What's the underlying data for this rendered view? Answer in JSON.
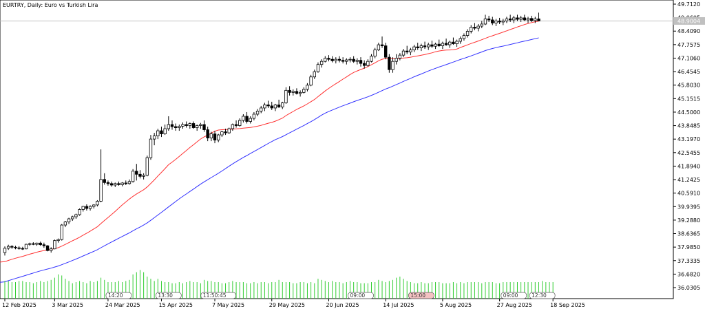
{
  "chart_data": {
    "type": "candlestick",
    "symbol_title": "EURTRY, Daily:  Euro vs Turkish Lira",
    "current_price": "48.9004",
    "y_ticks": [
      "49.7120",
      "49.0605",
      "48.4090",
      "47.7575",
      "47.1060",
      "46.4545",
      "45.8030",
      "45.1515",
      "44.5000",
      "43.8485",
      "43.1970",
      "42.5455",
      "41.8940",
      "41.2425",
      "40.5910",
      "39.9395",
      "39.2880",
      "38.6365",
      "37.9850",
      "37.3335",
      "36.6820",
      "36.0305"
    ],
    "y_tick_values": [
      49.712,
      49.0605,
      48.409,
      47.7575,
      47.106,
      46.4545,
      45.803,
      45.1515,
      44.5,
      43.8485,
      43.197,
      42.5455,
      41.894,
      41.2425,
      40.591,
      39.9395,
      39.288,
      38.6365,
      37.985,
      37.3335,
      36.682,
      36.0305
    ],
    "x_ticks": [
      {
        "label": "12 Feb 2025",
        "bar": 0
      },
      {
        "label": "3 Mar 2025",
        "bar": 14
      },
      {
        "label": "24 Mar 2025",
        "bar": 29
      },
      {
        "label": "15 Apr 2025",
        "bar": 44
      },
      {
        "label": "7 May 2025",
        "bar": 59
      },
      {
        "label": "29 May 2025",
        "bar": 75
      },
      {
        "label": "20 Jun 2025",
        "bar": 91
      },
      {
        "label": "14 Jul 2025",
        "bar": 107
      },
      {
        "label": "5 Aug 2025",
        "bar": 123
      },
      {
        "label": "27 Aug 2025",
        "bar": 139
      },
      {
        "label": "18 Sep 2025",
        "bar": 154
      }
    ],
    "events": [
      {
        "label": "14:20",
        "bar": 32,
        "color": "#ffffff"
      },
      {
        "label": "13:30",
        "bar": 46,
        "color": "#ffffff"
      },
      {
        "label": "11:50:45",
        "bar": 60,
        "color": "#ffffff"
      },
      {
        "label": "09:00",
        "bar": 100,
        "color": "#ffffff"
      },
      {
        "label": "15:00",
        "bar": 117,
        "color": "#f4c2c2"
      },
      {
        "label": "09:00",
        "bar": 143,
        "color": "#ffffff"
      },
      {
        "label": "12:30",
        "bar": 151,
        "color": "#ffffff"
      }
    ],
    "ma_fast": {
      "name": "",
      "color": "#ff3030"
    },
    "ma_slow": {
      "name": "",
      "color": "#3030ff"
    },
    "candles": [
      {
        "o": 37.72,
        "h": 38.02,
        "l": 37.58,
        "c": 37.93
      },
      {
        "o": 37.93,
        "h": 38.1,
        "l": 37.85,
        "c": 38.02
      },
      {
        "o": 38.02,
        "h": 38.08,
        "l": 37.9,
        "c": 37.98
      },
      {
        "o": 37.98,
        "h": 38.05,
        "l": 37.88,
        "c": 37.95
      },
      {
        "o": 37.95,
        "h": 38.03,
        "l": 37.86,
        "c": 37.92
      },
      {
        "o": 37.92,
        "h": 38.0,
        "l": 37.85,
        "c": 37.9
      },
      {
        "o": 37.9,
        "h": 38.15,
        "l": 37.88,
        "c": 38.12
      },
      {
        "o": 38.12,
        "h": 38.2,
        "l": 38.05,
        "c": 38.15
      },
      {
        "o": 38.15,
        "h": 38.22,
        "l": 38.08,
        "c": 38.12
      },
      {
        "o": 38.12,
        "h": 38.2,
        "l": 38.05,
        "c": 38.18
      },
      {
        "o": 38.18,
        "h": 38.25,
        "l": 38.05,
        "c": 38.1
      },
      {
        "o": 38.1,
        "h": 38.2,
        "l": 37.95,
        "c": 38.05
      },
      {
        "o": 38.05,
        "h": 38.08,
        "l": 37.78,
        "c": 37.82
      },
      {
        "o": 37.82,
        "h": 37.98,
        "l": 37.72,
        "c": 37.9
      },
      {
        "o": 37.9,
        "h": 38.35,
        "l": 37.88,
        "c": 38.3
      },
      {
        "o": 38.3,
        "h": 38.4,
        "l": 38.2,
        "c": 38.35
      },
      {
        "o": 38.35,
        "h": 39.1,
        "l": 38.3,
        "c": 39.05
      },
      {
        "o": 39.05,
        "h": 39.25,
        "l": 38.95,
        "c": 39.2
      },
      {
        "o": 39.2,
        "h": 39.4,
        "l": 39.1,
        "c": 39.35
      },
      {
        "o": 39.35,
        "h": 39.5,
        "l": 39.25,
        "c": 39.45
      },
      {
        "o": 39.45,
        "h": 39.6,
        "l": 39.35,
        "c": 39.55
      },
      {
        "o": 39.55,
        "h": 39.85,
        "l": 39.5,
        "c": 39.8
      },
      {
        "o": 39.8,
        "h": 39.98,
        "l": 39.7,
        "c": 39.95
      },
      {
        "o": 39.95,
        "h": 40.05,
        "l": 39.75,
        "c": 39.85
      },
      {
        "o": 39.85,
        "h": 40.0,
        "l": 39.75,
        "c": 39.95
      },
      {
        "o": 39.95,
        "h": 40.05,
        "l": 39.85,
        "c": 40.02
      },
      {
        "o": 40.02,
        "h": 40.25,
        "l": 39.95,
        "c": 40.2
      },
      {
        "o": 40.2,
        "h": 42.7,
        "l": 40.15,
        "c": 41.25
      },
      {
        "o": 41.25,
        "h": 41.55,
        "l": 41.0,
        "c": 41.1
      },
      {
        "o": 41.1,
        "h": 41.2,
        "l": 40.95,
        "c": 41.05
      },
      {
        "o": 41.05,
        "h": 41.15,
        "l": 40.9,
        "c": 40.98
      },
      {
        "o": 40.98,
        "h": 41.1,
        "l": 40.88,
        "c": 41.05
      },
      {
        "o": 41.05,
        "h": 41.15,
        "l": 40.95,
        "c": 41.0
      },
      {
        "o": 41.0,
        "h": 41.12,
        "l": 40.92,
        "c": 41.08
      },
      {
        "o": 41.08,
        "h": 41.2,
        "l": 40.98,
        "c": 41.05
      },
      {
        "o": 41.05,
        "h": 41.25,
        "l": 41.0,
        "c": 41.15
      },
      {
        "o": 41.15,
        "h": 41.75,
        "l": 41.1,
        "c": 41.65
      },
      {
        "o": 41.65,
        "h": 42.0,
        "l": 41.2,
        "c": 41.5
      },
      {
        "o": 41.5,
        "h": 41.7,
        "l": 41.3,
        "c": 41.4
      },
      {
        "o": 41.4,
        "h": 41.55,
        "l": 41.25,
        "c": 41.45
      },
      {
        "o": 41.45,
        "h": 42.4,
        "l": 41.4,
        "c": 42.3
      },
      {
        "o": 42.3,
        "h": 43.4,
        "l": 42.2,
        "c": 43.2
      },
      {
        "o": 43.2,
        "h": 43.5,
        "l": 42.9,
        "c": 43.35
      },
      {
        "o": 43.35,
        "h": 43.7,
        "l": 43.2,
        "c": 43.6
      },
      {
        "o": 43.6,
        "h": 43.8,
        "l": 43.3,
        "c": 43.45
      },
      {
        "o": 43.45,
        "h": 43.9,
        "l": 43.4,
        "c": 43.7
      },
      {
        "o": 43.7,
        "h": 44.3,
        "l": 43.6,
        "c": 43.9
      },
      {
        "o": 43.9,
        "h": 44.1,
        "l": 43.65,
        "c": 43.8
      },
      {
        "o": 43.8,
        "h": 43.95,
        "l": 43.6,
        "c": 43.75
      },
      {
        "o": 43.75,
        "h": 43.9,
        "l": 43.6,
        "c": 43.82
      },
      {
        "o": 43.82,
        "h": 44.0,
        "l": 43.7,
        "c": 43.9
      },
      {
        "o": 43.9,
        "h": 44.05,
        "l": 43.75,
        "c": 43.85
      },
      {
        "o": 43.85,
        "h": 44.0,
        "l": 43.7,
        "c": 43.95
      },
      {
        "o": 43.95,
        "h": 44.05,
        "l": 43.7,
        "c": 43.75
      },
      {
        "o": 43.75,
        "h": 43.9,
        "l": 43.6,
        "c": 43.85
      },
      {
        "o": 43.85,
        "h": 43.98,
        "l": 43.7,
        "c": 43.9
      },
      {
        "o": 43.9,
        "h": 44.1,
        "l": 43.55,
        "c": 43.65
      },
      {
        "o": 43.65,
        "h": 43.8,
        "l": 43.1,
        "c": 43.25
      },
      {
        "o": 43.25,
        "h": 43.55,
        "l": 43.1,
        "c": 43.45
      },
      {
        "o": 43.45,
        "h": 43.6,
        "l": 43.0,
        "c": 43.15
      },
      {
        "o": 43.15,
        "h": 43.45,
        "l": 43.05,
        "c": 43.4
      },
      {
        "o": 43.4,
        "h": 43.6,
        "l": 43.3,
        "c": 43.55
      },
      {
        "o": 43.55,
        "h": 43.7,
        "l": 43.4,
        "c": 43.5
      },
      {
        "o": 43.5,
        "h": 43.75,
        "l": 43.45,
        "c": 43.7
      },
      {
        "o": 43.7,
        "h": 43.95,
        "l": 43.6,
        "c": 43.9
      },
      {
        "o": 43.9,
        "h": 44.1,
        "l": 43.75,
        "c": 43.85
      },
      {
        "o": 43.85,
        "h": 44.2,
        "l": 43.8,
        "c": 44.1
      },
      {
        "o": 44.1,
        "h": 44.4,
        "l": 44.0,
        "c": 44.3
      },
      {
        "o": 44.3,
        "h": 44.5,
        "l": 43.95,
        "c": 44.05
      },
      {
        "o": 44.05,
        "h": 44.3,
        "l": 43.95,
        "c": 44.2
      },
      {
        "o": 44.2,
        "h": 44.5,
        "l": 44.1,
        "c": 44.4
      },
      {
        "o": 44.4,
        "h": 44.65,
        "l": 44.3,
        "c": 44.55
      },
      {
        "o": 44.55,
        "h": 44.8,
        "l": 44.45,
        "c": 44.7
      },
      {
        "o": 44.7,
        "h": 44.95,
        "l": 44.55,
        "c": 44.85
      },
      {
        "o": 44.85,
        "h": 45.05,
        "l": 44.7,
        "c": 44.8
      },
      {
        "o": 44.8,
        "h": 45.0,
        "l": 44.6,
        "c": 44.7
      },
      {
        "o": 44.7,
        "h": 44.9,
        "l": 44.55,
        "c": 44.85
      },
      {
        "o": 44.85,
        "h": 45.1,
        "l": 44.7,
        "c": 44.75
      },
      {
        "o": 44.75,
        "h": 45.0,
        "l": 44.65,
        "c": 44.95
      },
      {
        "o": 44.95,
        "h": 45.7,
        "l": 44.9,
        "c": 45.55
      },
      {
        "o": 45.55,
        "h": 45.75,
        "l": 45.3,
        "c": 45.45
      },
      {
        "o": 45.45,
        "h": 45.6,
        "l": 45.3,
        "c": 45.5
      },
      {
        "o": 45.5,
        "h": 45.65,
        "l": 45.35,
        "c": 45.4
      },
      {
        "o": 45.4,
        "h": 45.55,
        "l": 45.25,
        "c": 45.45
      },
      {
        "o": 45.45,
        "h": 45.7,
        "l": 45.4,
        "c": 45.6
      },
      {
        "o": 45.6,
        "h": 45.9,
        "l": 45.5,
        "c": 45.8
      },
      {
        "o": 45.8,
        "h": 46.3,
        "l": 45.75,
        "c": 46.2
      },
      {
        "o": 46.2,
        "h": 46.55,
        "l": 46.1,
        "c": 46.45
      },
      {
        "o": 46.45,
        "h": 46.9,
        "l": 46.4,
        "c": 46.8
      },
      {
        "o": 46.8,
        "h": 47.05,
        "l": 46.65,
        "c": 46.95
      },
      {
        "o": 46.95,
        "h": 47.2,
        "l": 46.9,
        "c": 47.1
      },
      {
        "o": 47.1,
        "h": 47.25,
        "l": 46.95,
        "c": 47.05
      },
      {
        "o": 47.05,
        "h": 47.2,
        "l": 46.9,
        "c": 46.98
      },
      {
        "o": 46.98,
        "h": 47.15,
        "l": 46.85,
        "c": 47.05
      },
      {
        "o": 47.05,
        "h": 47.2,
        "l": 46.9,
        "c": 47.0
      },
      {
        "o": 47.0,
        "h": 47.15,
        "l": 46.85,
        "c": 46.95
      },
      {
        "o": 46.95,
        "h": 47.1,
        "l": 46.8,
        "c": 47.02
      },
      {
        "o": 47.02,
        "h": 47.15,
        "l": 46.9,
        "c": 47.05
      },
      {
        "o": 47.05,
        "h": 47.2,
        "l": 46.88,
        "c": 46.95
      },
      {
        "o": 46.95,
        "h": 47.1,
        "l": 46.8,
        "c": 47.0
      },
      {
        "o": 47.0,
        "h": 47.15,
        "l": 46.7,
        "c": 46.85
      },
      {
        "o": 46.85,
        "h": 47.0,
        "l": 46.6,
        "c": 46.75
      },
      {
        "o": 46.75,
        "h": 47.05,
        "l": 46.7,
        "c": 46.95
      },
      {
        "o": 46.95,
        "h": 47.3,
        "l": 46.9,
        "c": 47.2
      },
      {
        "o": 47.2,
        "h": 47.6,
        "l": 47.1,
        "c": 47.5
      },
      {
        "o": 47.5,
        "h": 47.85,
        "l": 47.45,
        "c": 47.75
      },
      {
        "o": 47.75,
        "h": 48.15,
        "l": 47.6,
        "c": 47.7
      },
      {
        "o": 47.7,
        "h": 47.85,
        "l": 47.05,
        "c": 47.15
      },
      {
        "o": 47.15,
        "h": 47.3,
        "l": 46.4,
        "c": 46.55
      },
      {
        "o": 46.55,
        "h": 47.15,
        "l": 46.4,
        "c": 46.95
      },
      {
        "o": 46.95,
        "h": 47.3,
        "l": 46.8,
        "c": 47.1
      },
      {
        "o": 47.1,
        "h": 47.35,
        "l": 47.0,
        "c": 47.25
      },
      {
        "o": 47.25,
        "h": 47.55,
        "l": 47.15,
        "c": 47.45
      },
      {
        "o": 47.45,
        "h": 47.7,
        "l": 47.3,
        "c": 47.4
      },
      {
        "o": 47.4,
        "h": 47.6,
        "l": 47.25,
        "c": 47.5
      },
      {
        "o": 47.5,
        "h": 47.75,
        "l": 47.4,
        "c": 47.65
      },
      {
        "o": 47.65,
        "h": 47.85,
        "l": 47.5,
        "c": 47.6
      },
      {
        "o": 47.6,
        "h": 47.8,
        "l": 47.45,
        "c": 47.7
      },
      {
        "o": 47.7,
        "h": 47.9,
        "l": 47.55,
        "c": 47.65
      },
      {
        "o": 47.65,
        "h": 47.85,
        "l": 47.5,
        "c": 47.75
      },
      {
        "o": 47.75,
        "h": 47.95,
        "l": 47.6,
        "c": 47.68
      },
      {
        "o": 47.68,
        "h": 47.85,
        "l": 47.55,
        "c": 47.78
      },
      {
        "o": 47.78,
        "h": 48.0,
        "l": 47.65,
        "c": 47.7
      },
      {
        "o": 47.7,
        "h": 47.9,
        "l": 47.55,
        "c": 47.82
      },
      {
        "o": 47.82,
        "h": 48.05,
        "l": 47.7,
        "c": 47.75
      },
      {
        "o": 47.75,
        "h": 47.95,
        "l": 47.6,
        "c": 47.88
      },
      {
        "o": 47.88,
        "h": 48.1,
        "l": 47.75,
        "c": 47.8
      },
      {
        "o": 47.8,
        "h": 48.0,
        "l": 47.65,
        "c": 47.92
      },
      {
        "o": 47.92,
        "h": 48.15,
        "l": 47.8,
        "c": 48.05
      },
      {
        "o": 48.05,
        "h": 48.3,
        "l": 47.95,
        "c": 48.2
      },
      {
        "o": 48.2,
        "h": 48.5,
        "l": 48.1,
        "c": 48.4
      },
      {
        "o": 48.4,
        "h": 48.7,
        "l": 48.3,
        "c": 48.6
      },
      {
        "o": 48.6,
        "h": 48.8,
        "l": 48.45,
        "c": 48.55
      },
      {
        "o": 48.55,
        "h": 48.75,
        "l": 48.4,
        "c": 48.65
      },
      {
        "o": 48.65,
        "h": 48.9,
        "l": 48.55,
        "c": 48.75
      },
      {
        "o": 48.75,
        "h": 49.2,
        "l": 48.7,
        "c": 49.0
      },
      {
        "o": 49.0,
        "h": 49.15,
        "l": 48.85,
        "c": 48.95
      },
      {
        "o": 48.95,
        "h": 49.1,
        "l": 48.7,
        "c": 48.8
      },
      {
        "o": 48.8,
        "h": 49.0,
        "l": 48.65,
        "c": 48.9
      },
      {
        "o": 48.9,
        "h": 49.05,
        "l": 48.75,
        "c": 48.85
      },
      {
        "o": 48.85,
        "h": 49.0,
        "l": 48.7,
        "c": 48.9
      },
      {
        "o": 48.9,
        "h": 49.1,
        "l": 48.8,
        "c": 49.0
      },
      {
        "o": 49.0,
        "h": 49.2,
        "l": 48.85,
        "c": 48.95
      },
      {
        "o": 48.95,
        "h": 49.15,
        "l": 48.8,
        "c": 49.05
      },
      {
        "o": 49.05,
        "h": 49.2,
        "l": 48.9,
        "c": 48.98
      },
      {
        "o": 48.98,
        "h": 49.15,
        "l": 48.85,
        "c": 49.05
      },
      {
        "o": 49.05,
        "h": 49.2,
        "l": 48.9,
        "c": 48.95
      },
      {
        "o": 48.95,
        "h": 49.1,
        "l": 48.8,
        "c": 49.02
      },
      {
        "o": 49.02,
        "h": 49.15,
        "l": 48.85,
        "c": 48.92
      },
      {
        "o": 48.92,
        "h": 49.1,
        "l": 48.8,
        "c": 49.0
      },
      {
        "o": 49.0,
        "h": 49.3,
        "l": 48.9,
        "c": 48.9
      }
    ],
    "volumes": [
      16,
      16,
      15,
      15,
      16,
      16,
      15,
      15,
      14,
      15,
      16,
      15,
      16,
      17,
      19,
      22,
      21,
      18,
      16,
      14,
      15,
      16,
      15,
      14,
      16,
      15,
      16,
      19,
      17,
      15,
      15,
      15,
      16,
      15,
      16,
      17,
      22,
      24,
      26,
      24,
      20,
      18,
      16,
      18,
      16,
      15,
      15,
      14,
      14,
      15,
      14,
      15,
      16,
      15,
      15,
      14,
      17,
      16,
      16,
      15,
      15,
      14,
      14,
      15,
      16,
      15,
      15,
      15,
      14,
      14,
      15,
      14,
      15,
      15,
      14,
      15,
      15,
      17,
      15,
      15,
      15,
      14,
      14,
      15,
      15,
      14,
      15,
      14,
      18,
      17,
      16,
      15,
      16,
      15,
      15,
      14,
      15,
      16,
      15,
      15,
      14,
      14,
      14,
      15,
      15,
      17,
      16,
      15,
      16,
      17,
      19,
      20,
      18,
      16,
      15,
      14,
      14,
      15,
      14,
      14,
      15,
      15,
      15,
      14,
      14,
      14,
      15,
      14,
      15,
      14,
      15,
      15,
      15,
      15,
      14,
      15,
      15,
      15,
      14,
      14,
      15,
      15,
      15,
      15,
      15,
      15,
      15,
      15,
      15,
      15,
      15,
      16,
      15,
      15,
      15
    ]
  }
}
